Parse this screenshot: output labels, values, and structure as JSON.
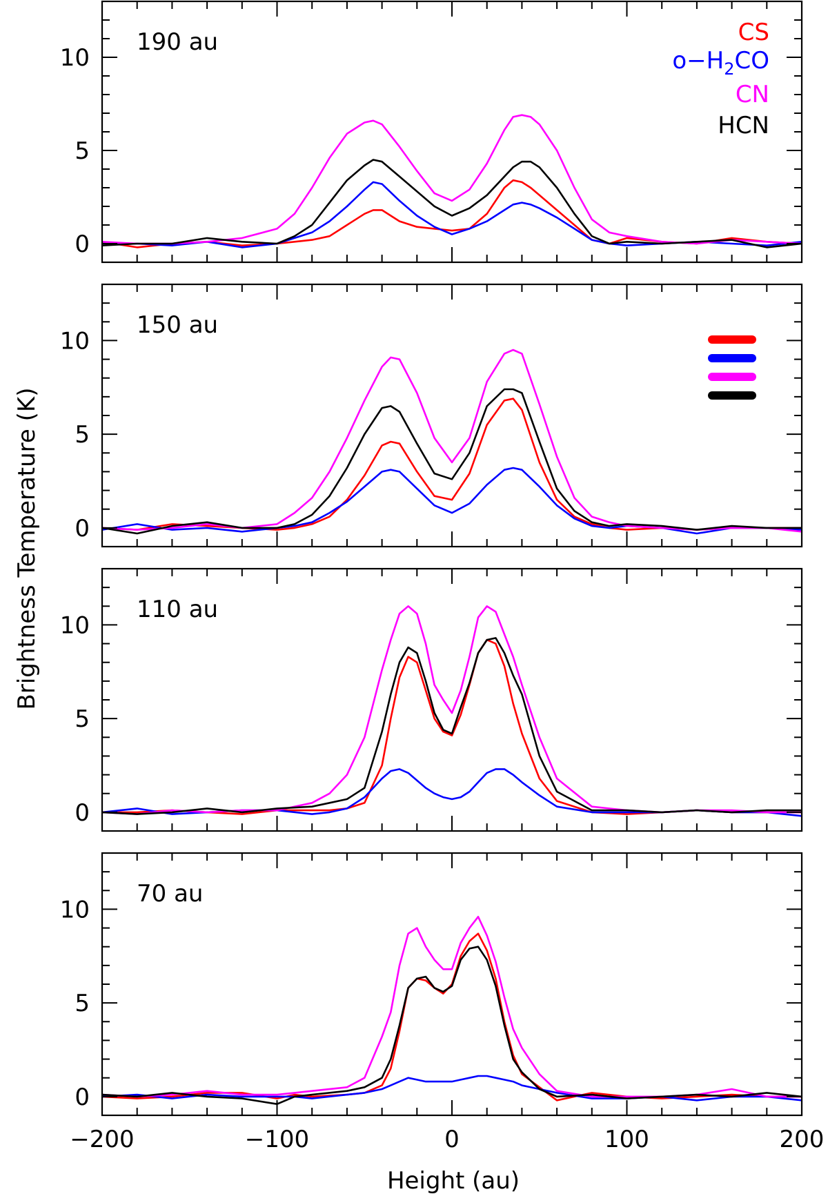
{
  "chart_data": {
    "type": "line",
    "xlabel": "Height (au)",
    "ylabel": "Brightness Temperature (K)",
    "xlim": [
      -200,
      200
    ],
    "ylim": [
      -1,
      13
    ],
    "xticks": [
      -200,
      -100,
      0,
      100,
      200
    ],
    "yticks": [
      0,
      5,
      10
    ],
    "legend": [
      {
        "name": "CS",
        "display": "CS",
        "color": "#ff0000"
      },
      {
        "name": "o-H2CO",
        "display_prefix": "o−H",
        "display_sub": "2",
        "display_suffix": "CO",
        "color": "#0000ff"
      },
      {
        "name": "CN",
        "display": "CN",
        "color": "#ff00ff"
      },
      {
        "name": "HCN",
        "display": "HCN",
        "color": "#000000"
      }
    ],
    "legend_placement": "top-right",
    "panels": [
      {
        "title": "190 au",
        "x": [
          -200,
          -180,
          -160,
          -140,
          -120,
          -100,
          -90,
          -80,
          -70,
          -60,
          -50,
          -45,
          -40,
          -30,
          -20,
          -10,
          0,
          10,
          20,
          30,
          35,
          40,
          45,
          50,
          60,
          70,
          80,
          90,
          100,
          120,
          140,
          160,
          180,
          200
        ],
        "series": [
          {
            "name": "CS",
            "color": "#ff0000",
            "values": [
              0.1,
              -0.2,
              0.0,
              0.1,
              -0.1,
              0.0,
              0.1,
              0.2,
              0.4,
              1.0,
              1.6,
              1.8,
              1.8,
              1.2,
              0.9,
              0.8,
              0.7,
              0.8,
              1.6,
              3.0,
              3.4,
              3.3,
              3.0,
              2.6,
              1.8,
              1.0,
              0.2,
              0.0,
              0.3,
              0.1,
              0.0,
              0.3,
              0.1,
              0.0
            ]
          },
          {
            "name": "o-H2CO",
            "color": "#0000ff",
            "values": [
              0.0,
              0.0,
              -0.1,
              0.1,
              -0.2,
              0.0,
              0.3,
              0.6,
              1.2,
              2.0,
              2.9,
              3.3,
              3.2,
              2.3,
              1.5,
              0.9,
              0.5,
              0.8,
              1.2,
              1.8,
              2.1,
              2.2,
              2.1,
              1.9,
              1.4,
              0.8,
              0.2,
              0.0,
              -0.1,
              0.0,
              0.1,
              0.0,
              -0.1,
              0.1
            ]
          },
          {
            "name": "CN",
            "color": "#ff00ff",
            "values": [
              0.1,
              0.0,
              0.0,
              0.1,
              0.3,
              0.8,
              1.6,
              3.0,
              4.6,
              5.9,
              6.5,
              6.6,
              6.4,
              5.2,
              3.9,
              2.7,
              2.3,
              2.9,
              4.3,
              6.1,
              6.8,
              6.9,
              6.8,
              6.4,
              5.0,
              3.0,
              1.3,
              0.6,
              0.4,
              0.1,
              0.0,
              0.2,
              0.1,
              0.0
            ]
          },
          {
            "name": "HCN",
            "color": "#000000",
            "values": [
              -0.1,
              0.0,
              0.0,
              0.3,
              0.1,
              0.0,
              0.4,
              1.0,
              2.2,
              3.4,
              4.2,
              4.5,
              4.4,
              3.6,
              2.8,
              2.0,
              1.5,
              1.9,
              2.6,
              3.6,
              4.1,
              4.4,
              4.4,
              4.1,
              3.0,
              1.6,
              0.4,
              0.0,
              0.1,
              0.0,
              0.1,
              0.2,
              -0.2,
              0.0
            ]
          }
        ]
      },
      {
        "title": "150 au",
        "x": [
          -200,
          -180,
          -160,
          -140,
          -120,
          -100,
          -90,
          -80,
          -70,
          -60,
          -50,
          -40,
          -35,
          -30,
          -20,
          -10,
          0,
          10,
          20,
          30,
          35,
          40,
          50,
          60,
          70,
          80,
          90,
          100,
          120,
          140,
          160,
          180,
          200
        ],
        "series": [
          {
            "name": "CS",
            "color": "#ff0000",
            "values": [
              0.0,
              -0.1,
              0.2,
              0.1,
              0.0,
              -0.1,
              0.0,
              0.2,
              0.6,
              1.5,
              2.8,
              4.4,
              4.6,
              4.5,
              3.0,
              1.7,
              1.5,
              2.9,
              5.5,
              6.8,
              6.9,
              6.3,
              3.5,
              1.5,
              0.6,
              0.2,
              0.0,
              -0.1,
              0.0,
              -0.1,
              0.0,
              0.0,
              0.0
            ]
          },
          {
            "name": "o-H2CO",
            "color": "#0000ff",
            "values": [
              -0.1,
              0.2,
              -0.1,
              0.0,
              -0.2,
              0.0,
              0.1,
              0.3,
              0.8,
              1.4,
              2.2,
              3.0,
              3.1,
              3.0,
              2.1,
              1.2,
              0.8,
              1.3,
              2.3,
              3.1,
              3.2,
              3.1,
              2.2,
              1.2,
              0.5,
              0.1,
              0.0,
              0.1,
              0.0,
              -0.3,
              0.0,
              0.0,
              -0.1
            ]
          },
          {
            "name": "CN",
            "color": "#ff00ff",
            "values": [
              0.0,
              -0.1,
              0.0,
              0.2,
              0.0,
              0.2,
              0.8,
              1.6,
              3.0,
              4.8,
              6.8,
              8.6,
              9.1,
              9.0,
              7.2,
              4.8,
              3.5,
              4.8,
              7.8,
              9.3,
              9.5,
              9.3,
              6.6,
              3.8,
              1.6,
              0.6,
              0.3,
              0.1,
              0.0,
              -0.1,
              0.0,
              0.0,
              -0.2
            ]
          },
          {
            "name": "HCN",
            "color": "#000000",
            "values": [
              0.0,
              -0.3,
              0.1,
              0.3,
              0.0,
              0.0,
              0.2,
              0.7,
              1.7,
              3.2,
              5.0,
              6.4,
              6.5,
              6.2,
              4.5,
              2.9,
              2.6,
              4.0,
              6.5,
              7.4,
              7.4,
              7.2,
              4.6,
              2.1,
              0.9,
              0.3,
              0.1,
              0.2,
              0.1,
              -0.1,
              0.1,
              0.0,
              0.0
            ]
          }
        ]
      },
      {
        "title": "110 au",
        "x": [
          -200,
          -180,
          -160,
          -140,
          -120,
          -100,
          -80,
          -70,
          -60,
          -50,
          -40,
          -35,
          -30,
          -25,
          -20,
          -15,
          -10,
          -5,
          0,
          5,
          10,
          15,
          20,
          25,
          30,
          35,
          40,
          50,
          60,
          80,
          100,
          120,
          140,
          160,
          180,
          200
        ],
        "series": [
          {
            "name": "CS",
            "color": "#ff0000",
            "values": [
              0.0,
              0.0,
              0.1,
              0.0,
              -0.1,
              0.1,
              0.1,
              0.1,
              0.2,
              0.5,
              2.5,
              5.0,
              7.2,
              8.3,
              8.0,
              6.5,
              5.0,
              4.3,
              4.1,
              5.2,
              6.8,
              8.5,
              9.2,
              9.0,
              7.8,
              5.8,
              4.2,
              1.8,
              0.6,
              0.0,
              -0.1,
              0.0,
              0.1,
              0.0,
              0.0,
              0.0
            ]
          },
          {
            "name": "o-H2CO",
            "color": "#0000ff",
            "values": [
              0.0,
              0.2,
              -0.1,
              0.0,
              0.1,
              0.1,
              -0.1,
              0.0,
              0.2,
              0.8,
              1.8,
              2.2,
              2.3,
              2.1,
              1.7,
              1.3,
              1.0,
              0.8,
              0.7,
              0.8,
              1.1,
              1.6,
              2.1,
              2.3,
              2.3,
              2.0,
              1.6,
              0.9,
              0.3,
              0.0,
              0.0,
              0.0,
              0.1,
              0.0,
              0.0,
              -0.2
            ]
          },
          {
            "name": "CN",
            "color": "#ff00ff",
            "values": [
              0.0,
              -0.1,
              0.1,
              0.0,
              0.1,
              0.1,
              0.5,
              1.0,
              2.0,
              4.0,
              7.6,
              9.2,
              10.6,
              11.0,
              10.6,
              9.0,
              6.8,
              6.0,
              5.3,
              6.5,
              8.3,
              10.4,
              11.0,
              10.7,
              9.5,
              8.3,
              6.8,
              4.0,
              1.8,
              0.3,
              0.1,
              0.0,
              0.1,
              0.1,
              0.0,
              0.0
            ]
          },
          {
            "name": "HCN",
            "color": "#000000",
            "values": [
              0.0,
              -0.1,
              0.0,
              0.2,
              0.0,
              0.2,
              0.3,
              0.5,
              0.7,
              1.3,
              4.3,
              6.3,
              8.0,
              8.8,
              8.5,
              7.0,
              5.3,
              4.4,
              4.2,
              5.6,
              6.9,
              8.5,
              9.2,
              9.3,
              8.5,
              7.3,
              6.3,
              3.0,
              1.1,
              0.1,
              0.1,
              0.0,
              0.1,
              0.0,
              0.1,
              0.1
            ]
          }
        ]
      },
      {
        "title": "70 au",
        "x": [
          -200,
          -180,
          -160,
          -140,
          -120,
          -100,
          -90,
          -80,
          -60,
          -50,
          -40,
          -35,
          -30,
          -25,
          -20,
          -15,
          -10,
          -5,
          0,
          5,
          10,
          15,
          20,
          25,
          30,
          35,
          40,
          50,
          60,
          80,
          100,
          120,
          140,
          160,
          180,
          200
        ],
        "series": [
          {
            "name": "CS",
            "color": "#ff0000",
            "values": [
              0.0,
              -0.1,
              0.0,
              0.2,
              0.2,
              -0.1,
              0.1,
              0.0,
              0.1,
              0.2,
              0.6,
              1.5,
              3.5,
              5.8,
              6.3,
              6.2,
              5.8,
              5.5,
              6.0,
              7.5,
              8.3,
              8.7,
              7.8,
              6.3,
              4.0,
              2.2,
              1.2,
              0.5,
              -0.2,
              0.2,
              0.0,
              -0.1,
              0.0,
              0.1,
              0.0,
              0.0
            ]
          },
          {
            "name": "o-H2CO",
            "color": "#0000ff",
            "values": [
              0.0,
              0.1,
              -0.1,
              0.1,
              0.0,
              0.0,
              0.0,
              -0.1,
              0.1,
              0.2,
              0.4,
              0.6,
              0.8,
              1.0,
              0.9,
              0.8,
              0.8,
              0.8,
              0.8,
              0.9,
              1.0,
              1.1,
              1.1,
              1.0,
              0.9,
              0.8,
              0.6,
              0.4,
              0.2,
              -0.1,
              -0.1,
              0.0,
              -0.2,
              0.0,
              0.0,
              -0.2
            ]
          },
          {
            "name": "CN",
            "color": "#ff00ff",
            "values": [
              0.1,
              0.0,
              0.1,
              0.3,
              0.1,
              0.1,
              0.2,
              0.3,
              0.5,
              1.0,
              3.2,
              4.5,
              7.0,
              8.7,
              9.0,
              8.0,
              7.3,
              6.8,
              6.8,
              8.2,
              9.0,
              9.6,
              8.6,
              7.2,
              5.3,
              3.6,
              2.6,
              1.2,
              0.3,
              0.0,
              0.0,
              0.0,
              0.1,
              0.4,
              0.0,
              0.0
            ]
          },
          {
            "name": "HCN",
            "color": "#000000",
            "values": [
              0.1,
              0.0,
              0.2,
              0.0,
              -0.1,
              -0.4,
              0.0,
              0.1,
              0.3,
              0.5,
              1.0,
              2.0,
              3.8,
              5.8,
              6.3,
              6.4,
              5.8,
              5.6,
              5.9,
              7.3,
              7.9,
              8.0,
              7.3,
              5.9,
              3.8,
              2.0,
              1.3,
              0.4,
              0.0,
              0.1,
              -0.1,
              0.0,
              0.1,
              0.0,
              0.2,
              0.0
            ]
          }
        ]
      }
    ]
  }
}
